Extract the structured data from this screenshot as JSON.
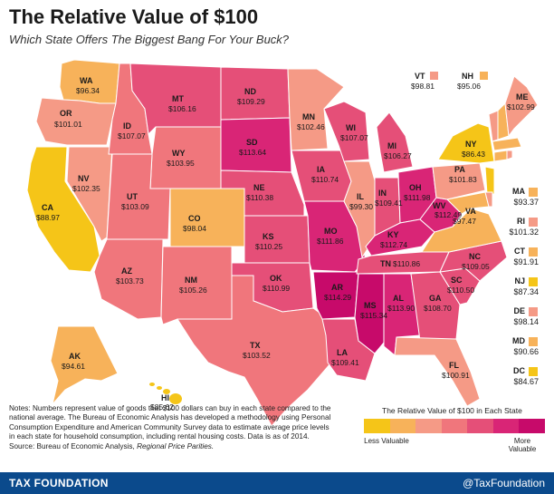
{
  "header": {
    "title": "The Relative Value of $100",
    "subtitle": "Which State Offers The Biggest Bang For Your Buck?"
  },
  "colors": {
    "c1": "#f5c518",
    "c2": "#f7b25a",
    "c3": "#f59a86",
    "c4": "#f0767c",
    "c5": "#e54f78",
    "c6": "#d92576",
    "c7": "#c70a6a",
    "ocean": "#ffffff",
    "footer": "#0b4a8c"
  },
  "states": {
    "WA": {
      "abbr": "WA",
      "value": "$96.34"
    },
    "OR": {
      "abbr": "OR",
      "value": "$101.01"
    },
    "CA": {
      "abbr": "CA",
      "value": "$88.97"
    },
    "NV": {
      "abbr": "NV",
      "value": "$102.35"
    },
    "ID": {
      "abbr": "ID",
      "value": "$107.07"
    },
    "MT": {
      "abbr": "MT",
      "value": "$106.16"
    },
    "WY": {
      "abbr": "WY",
      "value": "$103.95"
    },
    "UT": {
      "abbr": "UT",
      "value": "$103.09"
    },
    "AZ": {
      "abbr": "AZ",
      "value": "$103.73"
    },
    "CO": {
      "abbr": "CO",
      "value": "$98.04"
    },
    "NM": {
      "abbr": "NM",
      "value": "$105.26"
    },
    "ND": {
      "abbr": "ND",
      "value": "$109.29"
    },
    "SD": {
      "abbr": "SD",
      "value": "$113.64"
    },
    "NE": {
      "abbr": "NE",
      "value": "$110.38"
    },
    "KS": {
      "abbr": "KS",
      "value": "$110.25"
    },
    "OK": {
      "abbr": "OK",
      "value": "$110.99"
    },
    "TX": {
      "abbr": "TX",
      "value": "$103.52"
    },
    "MN": {
      "abbr": "MN",
      "value": "$102.46"
    },
    "IA": {
      "abbr": "IA",
      "value": "$110.74"
    },
    "MO": {
      "abbr": "MO",
      "value": "$111.86"
    },
    "AR": {
      "abbr": "AR",
      "value": "$114.29"
    },
    "LA": {
      "abbr": "LA",
      "value": "$109.41"
    },
    "WI": {
      "abbr": "WI",
      "value": "$107.07"
    },
    "IL": {
      "abbr": "IL",
      "value": "$99.30"
    },
    "MI": {
      "abbr": "MI",
      "value": "$106.27"
    },
    "IN": {
      "abbr": "IN",
      "value": "$109.41"
    },
    "OH": {
      "abbr": "OH",
      "value": "$111.98"
    },
    "KY": {
      "abbr": "KY",
      "value": "$112.74"
    },
    "TN": {
      "abbr": "TN",
      "value": "$110.86"
    },
    "MS": {
      "abbr": "MS",
      "value": "$115.34"
    },
    "AL": {
      "abbr": "AL",
      "value": "$113.90"
    },
    "GA": {
      "abbr": "GA",
      "value": "$108.70"
    },
    "FL": {
      "abbr": "FL",
      "value": "$100.91"
    },
    "SC": {
      "abbr": "SC",
      "value": "$110.50"
    },
    "NC": {
      "abbr": "NC",
      "value": "$109.05"
    },
    "VA": {
      "abbr": "VA",
      "value": "$97.47"
    },
    "WV": {
      "abbr": "WV",
      "value": "$112.49"
    },
    "PA": {
      "abbr": "PA",
      "value": "$101.83"
    },
    "NY": {
      "abbr": "NY",
      "value": "$86.43"
    },
    "ME": {
      "abbr": "ME",
      "value": "$102.99"
    },
    "VT": {
      "abbr": "VT",
      "value": "$98.81"
    },
    "NH": {
      "abbr": "NH",
      "value": "$95.06"
    },
    "AK": {
      "abbr": "AK",
      "value": "$94.61"
    },
    "HI": {
      "abbr": "HI",
      "value": "$85.62"
    }
  },
  "side_states": [
    {
      "abbr": "MA",
      "value": "$93.37",
      "color": "#f7b25a"
    },
    {
      "abbr": "RI",
      "value": "$101.32",
      "color": "#f59a86"
    },
    {
      "abbr": "CT",
      "value": "$91.91",
      "color": "#f7b25a"
    },
    {
      "abbr": "NJ",
      "value": "$87.34",
      "color": "#f5c518"
    },
    {
      "abbr": "DE",
      "value": "$98.14",
      "color": "#f59a86"
    },
    {
      "abbr": "MD",
      "value": "$90.66",
      "color": "#f7b25a"
    },
    {
      "abbr": "DC",
      "value": "$84.67",
      "color": "#f5c518"
    }
  ],
  "notes": {
    "body": "Notes: Numbers represent value of goods that $100 dollars can buy in each state compared to the national average. The Bureau of Economic Analysis has developed a methodology using Personal Consumption Expenditure and American Community Survey data to estimate average price levels in each state for household consumption, including rental housing costs. Data is as of 2014.",
    "source_prefix": "Source: Bureau of Economic Analysis, ",
    "source_title": "Regional Price Parities."
  },
  "legend": {
    "title": "The Relative Value of $100 in Each State",
    "low": "Less Valuable",
    "high": "More Valuable",
    "colors": [
      "#f5c518",
      "#f7b25a",
      "#f59a86",
      "#f0767c",
      "#e54f78",
      "#d92576",
      "#c70a6a"
    ]
  },
  "footer": {
    "left": "TAX FOUNDATION",
    "right": "@TaxFoundation"
  }
}
